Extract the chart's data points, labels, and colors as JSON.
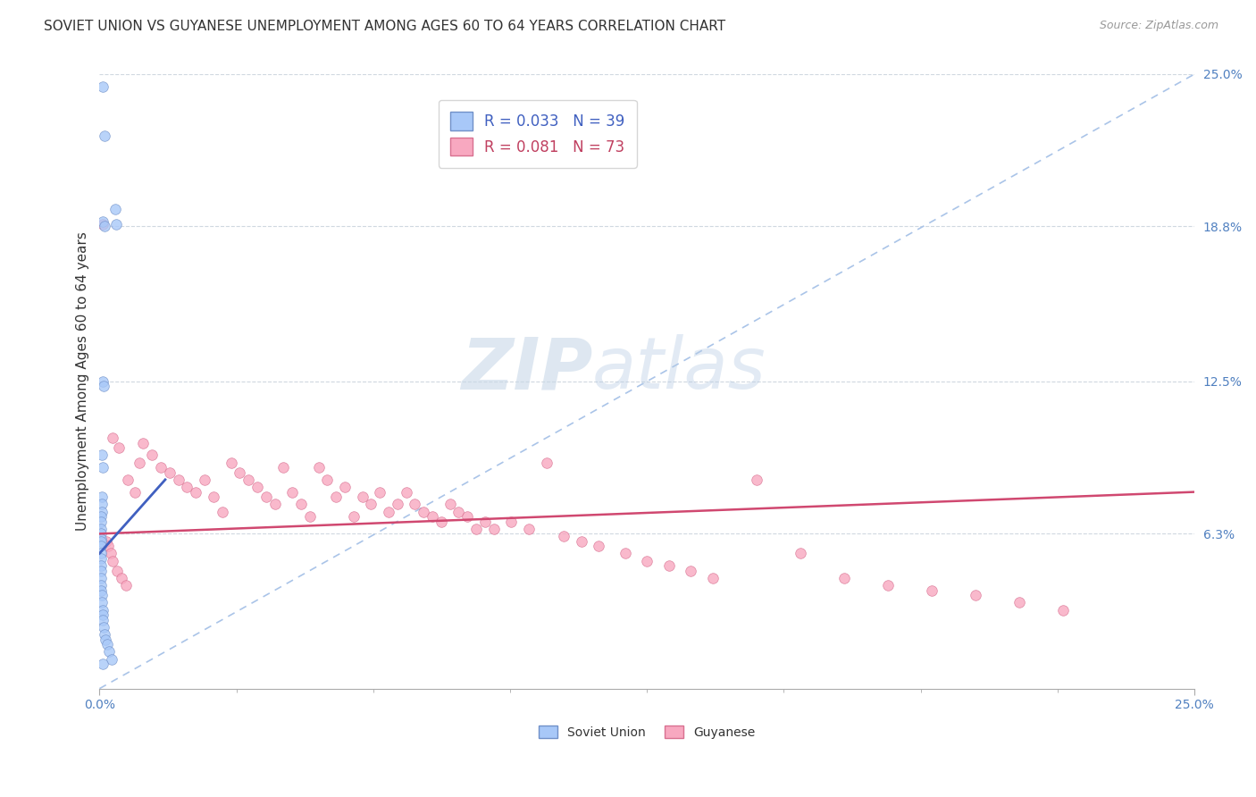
{
  "title": "SOVIET UNION VS GUYANESE UNEMPLOYMENT AMONG AGES 60 TO 64 YEARS CORRELATION CHART",
  "source": "Source: ZipAtlas.com",
  "ylabel": "Unemployment Among Ages 60 to 64 years",
  "xlim": [
    0,
    25
  ],
  "ylim": [
    0,
    25
  ],
  "ytick_vals": [
    6.3,
    12.5,
    18.8,
    25.0
  ],
  "ytick_labels": [
    "6.3%",
    "12.5%",
    "18.8%",
    "25.0%"
  ],
  "soviet_color": "#a8c8f8",
  "guyanese_color": "#f8a8c0",
  "soviet_edge_color": "#7090c8",
  "guyanese_edge_color": "#d87090",
  "ref_line_color": "#aac4e8",
  "soviet_reg_color": "#4060c0",
  "guyanese_reg_color": "#d04870",
  "title_fontsize": 11,
  "source_fontsize": 9,
  "axis_label_fontsize": 11,
  "tick_fontsize": 10,
  "legend_fontsize": 12,
  "marker_size": 70,
  "background_color": "#ffffff",
  "grid_color": "#d0d8e0",
  "soviet_x": [
    0.08,
    0.12,
    0.35,
    0.38,
    0.08,
    0.12,
    0.08,
    0.1,
    0.06,
    0.08,
    0.05,
    0.05,
    0.05,
    0.04,
    0.04,
    0.04,
    0.04,
    0.03,
    0.03,
    0.03,
    0.03,
    0.03,
    0.03,
    0.03,
    0.04,
    0.04,
    0.04,
    0.05,
    0.06,
    0.07,
    0.08,
    0.08,
    0.1,
    0.12,
    0.14,
    0.18,
    0.22,
    0.28,
    0.08
  ],
  "soviet_y": [
    24.5,
    22.5,
    19.5,
    18.9,
    19.0,
    18.8,
    12.5,
    12.3,
    9.5,
    9.0,
    7.8,
    7.5,
    7.2,
    7.0,
    6.8,
    6.5,
    6.3,
    6.1,
    6.0,
    5.8,
    5.5,
    5.3,
    5.0,
    4.8,
    4.5,
    4.2,
    4.0,
    3.8,
    3.5,
    3.2,
    3.0,
    2.8,
    2.5,
    2.2,
    2.0,
    1.8,
    1.5,
    1.2,
    1.0
  ],
  "guyanese_x": [
    0.08,
    0.3,
    0.45,
    0.65,
    0.8,
    0.9,
    1.0,
    1.2,
    1.4,
    1.6,
    1.8,
    2.0,
    2.2,
    2.4,
    2.6,
    2.8,
    3.0,
    3.2,
    3.4,
    3.6,
    3.8,
    4.0,
    4.2,
    4.4,
    4.6,
    4.8,
    5.0,
    5.2,
    5.4,
    5.6,
    5.8,
    6.0,
    6.2,
    6.4,
    6.6,
    6.8,
    7.0,
    7.2,
    7.4,
    7.6,
    7.8,
    8.0,
    8.2,
    8.4,
    8.6,
    8.8,
    9.0,
    9.4,
    9.8,
    10.2,
    10.6,
    11.0,
    11.4,
    12.0,
    12.5,
    13.0,
    13.5,
    14.0,
    15.0,
    16.0,
    17.0,
    18.0,
    19.0,
    20.0,
    21.0,
    22.0,
    0.15,
    0.2,
    0.25,
    0.3,
    0.4,
    0.5,
    0.6
  ],
  "guyanese_y": [
    18.9,
    10.2,
    9.8,
    8.5,
    8.0,
    9.2,
    10.0,
    9.5,
    9.0,
    8.8,
    8.5,
    8.2,
    8.0,
    8.5,
    7.8,
    7.2,
    9.2,
    8.8,
    8.5,
    8.2,
    7.8,
    7.5,
    9.0,
    8.0,
    7.5,
    7.0,
    9.0,
    8.5,
    7.8,
    8.2,
    7.0,
    7.8,
    7.5,
    8.0,
    7.2,
    7.5,
    8.0,
    7.5,
    7.2,
    7.0,
    6.8,
    7.5,
    7.2,
    7.0,
    6.5,
    6.8,
    6.5,
    6.8,
    6.5,
    9.2,
    6.2,
    6.0,
    5.8,
    5.5,
    5.2,
    5.0,
    4.8,
    4.5,
    8.5,
    5.5,
    4.5,
    4.2,
    4.0,
    3.8,
    3.5,
    3.2,
    6.0,
    5.8,
    5.5,
    5.2,
    4.8,
    4.5,
    4.2
  ]
}
